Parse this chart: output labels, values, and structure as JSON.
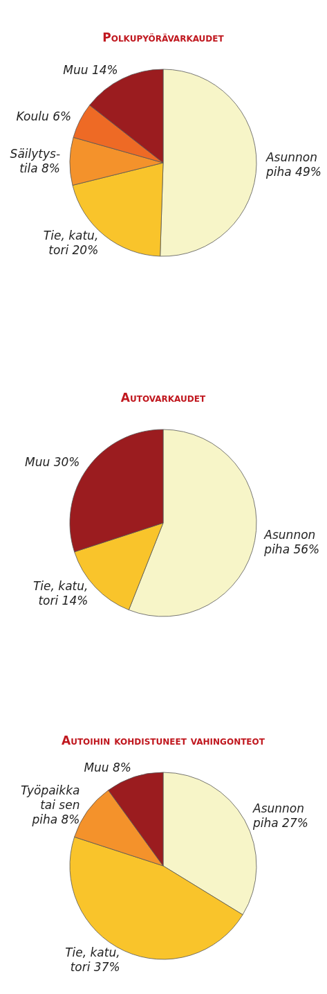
{
  "chart_data": [
    {
      "type": "pie",
      "title": "Polkupyörävarkaudet",
      "categories": [
        "Asunnon piha",
        "Tie, katu, tori",
        "Säilytys-tila",
        "Koulu",
        "Muu"
      ],
      "values": [
        49,
        20,
        8,
        6,
        14
      ],
      "colors": [
        "#f7f5c8",
        "#f9c42b",
        "#f4922b",
        "#ee6a25",
        "#9b1c1f"
      ],
      "value_labels": [
        "49%",
        "20%",
        "8%",
        "6%",
        "14%"
      ]
    },
    {
      "type": "pie",
      "title": "Autovarkaudet",
      "categories": [
        "Asunnon piha",
        "Tie, katu, tori",
        "Muu"
      ],
      "values": [
        56,
        14,
        30
      ],
      "colors": [
        "#f7f5c8",
        "#f9c42b",
        "#9b1c1f"
      ],
      "value_labels": [
        "56%",
        "14%",
        "30%"
      ]
    },
    {
      "type": "pie",
      "title": "Autoihin kohdistuneet vahingonteot",
      "categories": [
        "Asunnon piha",
        "Tie, katu, tori",
        "Työpaikka tai sen piha",
        "Muu"
      ],
      "values": [
        27,
        37,
        8,
        8
      ],
      "colors": [
        "#f7f5c8",
        "#f9c42b",
        "#f4922b",
        "#9b1c1f"
      ],
      "value_labels": [
        "27%",
        "37%",
        "8%",
        "8%"
      ]
    }
  ]
}
